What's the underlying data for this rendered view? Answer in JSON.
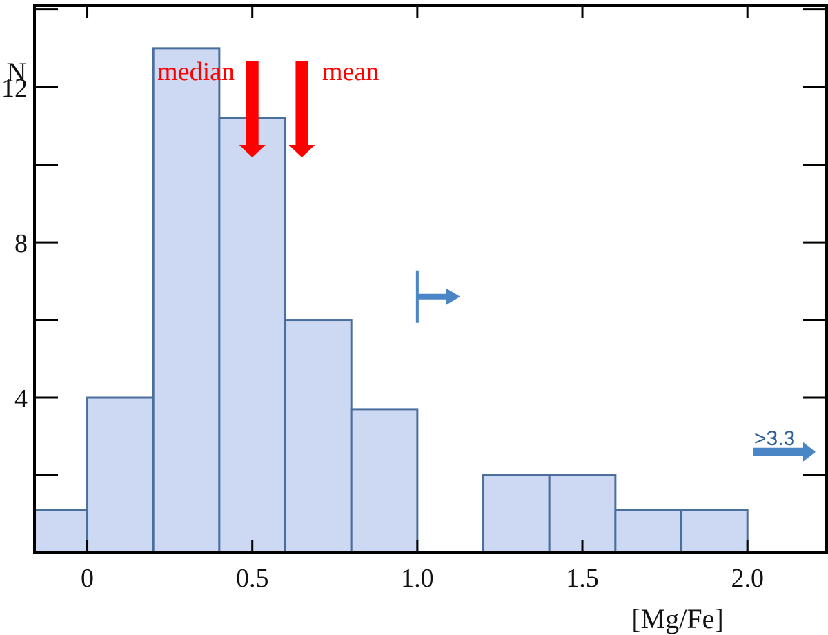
{
  "chart_data": {
    "type": "bar",
    "xlabel": "[Mg/Fe]",
    "ylabel": "N",
    "xlim": [
      -0.16,
      2.24
    ],
    "ylim": [
      0,
      14.1
    ],
    "grid": false,
    "x_tick_values": [
      0,
      0.5,
      1.0,
      1.5,
      2.0
    ],
    "x_tick_labels": [
      "0",
      "0.5",
      "1.0",
      "1.5",
      "2.0"
    ],
    "y_major_tick_values": [
      2,
      4,
      6,
      8,
      10,
      12,
      14
    ],
    "y_tick_labels": [
      {
        "value": 4,
        "label": "4"
      },
      {
        "value": 8,
        "label": "8"
      },
      {
        "value": 12,
        "label": "12"
      }
    ],
    "bins": [
      {
        "x0": -0.16,
        "x1": 0.0,
        "count": 1.1
      },
      {
        "x0": 0.0,
        "x1": 0.2,
        "count": 4
      },
      {
        "x0": 0.2,
        "x1": 0.4,
        "count": 13
      },
      {
        "x0": 0.4,
        "x1": 0.6,
        "count": 11.2
      },
      {
        "x0": 0.6,
        "x1": 0.8,
        "count": 6
      },
      {
        "x0": 0.8,
        "x1": 1.0,
        "count": 3.7
      },
      {
        "x0": 1.2,
        "x1": 1.4,
        "count": 2
      },
      {
        "x0": 1.4,
        "x1": 1.6,
        "count": 2
      },
      {
        "x0": 1.6,
        "x1": 1.8,
        "count": 1.1
      },
      {
        "x0": 1.8,
        "x1": 2.0,
        "count": 1.1
      }
    ],
    "annotations": {
      "median": {
        "label": "median",
        "x": 0.5,
        "color": "#ff0000"
      },
      "mean": {
        "label": "mean",
        "x": 0.65,
        "color": "#ff0000"
      },
      "lower_limit": {
        "x": 1.0,
        "y": 6.6,
        "color": "#4a86c5"
      },
      "overflow": {
        "label": ">3.3",
        "y": 2.6,
        "color": "#4a86c5"
      }
    },
    "colors": {
      "bar_fill": "#cdd9f3",
      "bar_stroke": "#4b6f9c",
      "axis": "#000000"
    }
  }
}
